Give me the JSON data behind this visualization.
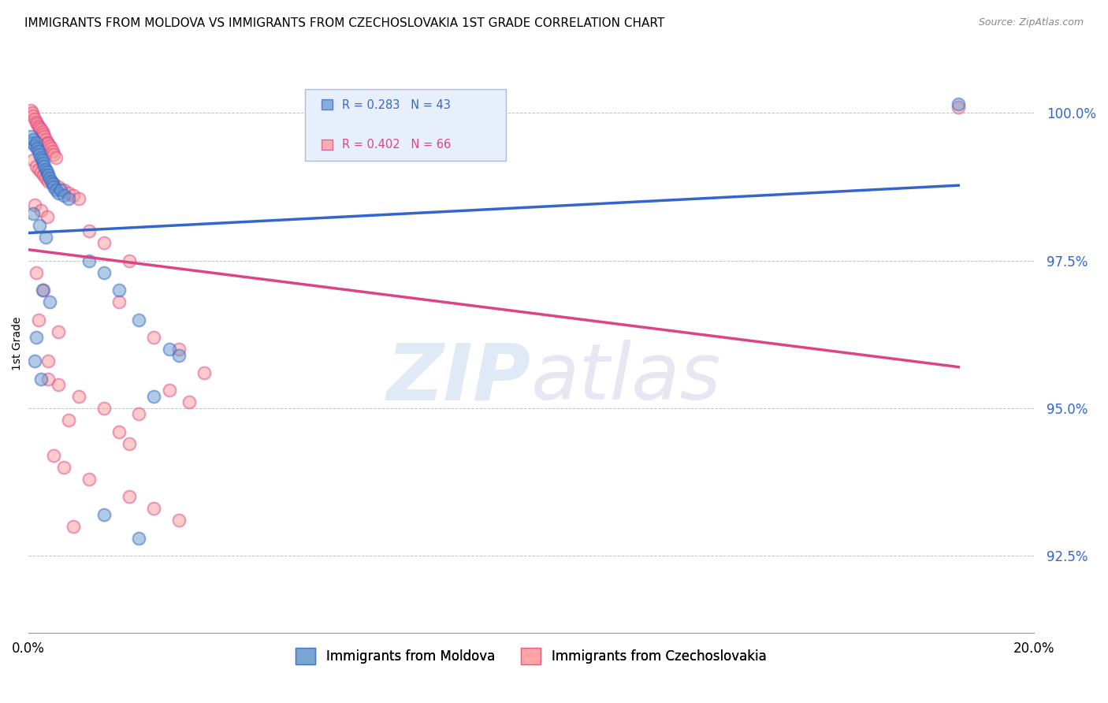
{
  "title": "IMMIGRANTS FROM MOLDOVA VS IMMIGRANTS FROM CZECHOSLOVAKIA 1ST GRADE CORRELATION CHART",
  "source": "Source: ZipAtlas.com",
  "ylabel": "1st Grade",
  "yticks": [
    92.5,
    95.0,
    97.5,
    100.0
  ],
  "ytick_labels": [
    "92.5%",
    "95.0%",
    "97.5%",
    "100.0%"
  ],
  "xlim": [
    0.0,
    20.0
  ],
  "ylim": [
    91.2,
    101.0
  ],
  "legend_blue_label": "Immigrants from Moldova",
  "legend_pink_label": "Immigrants from Czechoslovakia",
  "r_blue": 0.283,
  "n_blue": 43,
  "r_pink": 0.402,
  "n_pink": 66,
  "blue_color": "#6699CC",
  "pink_color": "#FF9999",
  "blue_line_color": "#3366CC",
  "pink_line_color": "#DD4488",
  "watermark_zip": "ZIP",
  "watermark_atlas": "atlas",
  "blue_scatter": [
    [
      0.05,
      99.6
    ],
    [
      0.08,
      99.5
    ],
    [
      0.1,
      99.55
    ],
    [
      0.12,
      99.45
    ],
    [
      0.15,
      99.5
    ],
    [
      0.18,
      99.4
    ],
    [
      0.2,
      99.35
    ],
    [
      0.22,
      99.3
    ],
    [
      0.25,
      99.25
    ],
    [
      0.28,
      99.2
    ],
    [
      0.3,
      99.15
    ],
    [
      0.32,
      99.1
    ],
    [
      0.35,
      99.05
    ],
    [
      0.38,
      99.0
    ],
    [
      0.4,
      98.95
    ],
    [
      0.42,
      98.9
    ],
    [
      0.45,
      98.85
    ],
    [
      0.48,
      98.8
    ],
    [
      0.5,
      98.75
    ],
    [
      0.55,
      98.7
    ],
    [
      0.6,
      98.65
    ],
    [
      0.65,
      98.7
    ],
    [
      0.7,
      98.6
    ],
    [
      0.8,
      98.55
    ],
    [
      0.1,
      98.3
    ],
    [
      0.22,
      98.1
    ],
    [
      0.35,
      97.9
    ],
    [
      1.2,
      97.5
    ],
    [
      1.5,
      97.3
    ],
    [
      1.8,
      97.0
    ],
    [
      0.28,
      97.0
    ],
    [
      0.42,
      96.8
    ],
    [
      2.2,
      96.5
    ],
    [
      0.15,
      96.2
    ],
    [
      2.8,
      96.0
    ],
    [
      3.0,
      95.9
    ],
    [
      0.12,
      95.8
    ],
    [
      0.25,
      95.5
    ],
    [
      2.5,
      95.2
    ],
    [
      1.5,
      93.2
    ],
    [
      2.2,
      92.8
    ],
    [
      8.0,
      100.1
    ],
    [
      18.5,
      100.15
    ]
  ],
  "pink_scatter": [
    [
      0.05,
      100.05
    ],
    [
      0.08,
      100.0
    ],
    [
      0.1,
      99.95
    ],
    [
      0.12,
      99.9
    ],
    [
      0.15,
      99.85
    ],
    [
      0.18,
      99.82
    ],
    [
      0.2,
      99.78
    ],
    [
      0.22,
      99.75
    ],
    [
      0.25,
      99.72
    ],
    [
      0.28,
      99.68
    ],
    [
      0.3,
      99.65
    ],
    [
      0.32,
      99.6
    ],
    [
      0.35,
      99.55
    ],
    [
      0.38,
      99.5
    ],
    [
      0.4,
      99.48
    ],
    [
      0.42,
      99.45
    ],
    [
      0.45,
      99.4
    ],
    [
      0.48,
      99.35
    ],
    [
      0.5,
      99.3
    ],
    [
      0.55,
      99.25
    ],
    [
      0.1,
      99.2
    ],
    [
      0.15,
      99.1
    ],
    [
      0.2,
      99.05
    ],
    [
      0.25,
      99.0
    ],
    [
      0.3,
      98.95
    ],
    [
      0.35,
      98.9
    ],
    [
      0.4,
      98.85
    ],
    [
      0.5,
      98.8
    ],
    [
      0.6,
      98.75
    ],
    [
      0.7,
      98.7
    ],
    [
      0.8,
      98.65
    ],
    [
      0.9,
      98.6
    ],
    [
      1.0,
      98.55
    ],
    [
      0.12,
      98.45
    ],
    [
      0.25,
      98.35
    ],
    [
      0.38,
      98.25
    ],
    [
      1.2,
      98.0
    ],
    [
      1.5,
      97.8
    ],
    [
      2.0,
      97.5
    ],
    [
      0.15,
      97.3
    ],
    [
      0.3,
      97.0
    ],
    [
      1.8,
      96.8
    ],
    [
      0.2,
      96.5
    ],
    [
      2.5,
      96.2
    ],
    [
      3.0,
      96.0
    ],
    [
      0.4,
      95.8
    ],
    [
      3.5,
      95.6
    ],
    [
      0.6,
      95.4
    ],
    [
      1.0,
      95.2
    ],
    [
      1.5,
      95.0
    ],
    [
      0.8,
      94.8
    ],
    [
      1.8,
      94.6
    ],
    [
      2.0,
      94.4
    ],
    [
      0.5,
      94.2
    ],
    [
      0.7,
      94.0
    ],
    [
      1.2,
      93.8
    ],
    [
      2.0,
      93.5
    ],
    [
      2.5,
      93.3
    ],
    [
      3.0,
      93.1
    ],
    [
      0.9,
      93.0
    ],
    [
      0.4,
      95.5
    ],
    [
      2.8,
      95.3
    ],
    [
      2.2,
      94.9
    ],
    [
      3.2,
      95.1
    ],
    [
      0.6,
      96.3
    ],
    [
      18.5,
      100.1
    ]
  ]
}
